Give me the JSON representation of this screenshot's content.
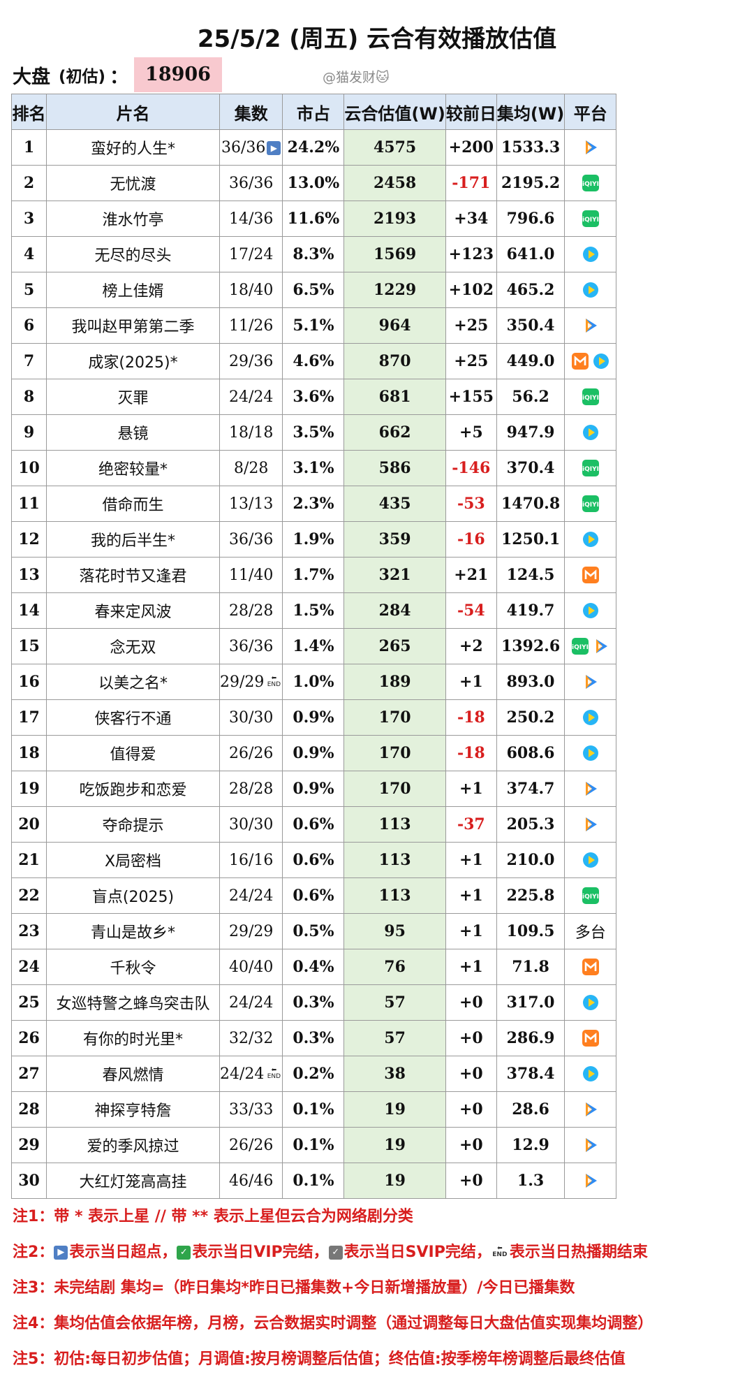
{
  "title": "25/5/2 (周五) 云合有效播放估值",
  "summary": {
    "label": "大盘",
    "sub_label": "(初估)",
    "colon": "：",
    "total": "18906"
  },
  "watermark": "@猫发财🐱",
  "columns": [
    "排名",
    "片名",
    "集数",
    "市占",
    "云合估值(W)",
    "较前日",
    "集均(W)",
    "平台"
  ],
  "colors": {
    "header_bg": "#dbe7f5",
    "estimate_bg": "#e3f1dc",
    "negative": "#d81e1e",
    "total_bg": "#f8c9cf"
  },
  "rows": [
    {
      "rank": "1",
      "name": "蛮好的人生*",
      "episodes": "36/36",
      "tag": "boost",
      "share": "24.2%",
      "estimate": "4575",
      "change": "+200",
      "avg": "1533.3",
      "platforms": [
        "tencent"
      ]
    },
    {
      "rank": "2",
      "name": "无忧渡",
      "episodes": "36/36",
      "tag": "",
      "share": "13.0%",
      "estimate": "2458",
      "change": "-171",
      "avg": "2195.2",
      "platforms": [
        "iqiyi"
      ]
    },
    {
      "rank": "3",
      "name": "淮水竹亭",
      "episodes": "14/36",
      "tag": "",
      "share": "11.6%",
      "estimate": "2193",
      "change": "+34",
      "avg": "796.6",
      "platforms": [
        "iqiyi"
      ]
    },
    {
      "rank": "4",
      "name": "无尽的尽头",
      "episodes": "17/24",
      "tag": "",
      "share": "8.3%",
      "estimate": "1569",
      "change": "+123",
      "avg": "641.0",
      "platforms": [
        "youku"
      ]
    },
    {
      "rank": "5",
      "name": "榜上佳婿",
      "episodes": "18/40",
      "tag": "",
      "share": "6.5%",
      "estimate": "1229",
      "change": "+102",
      "avg": "465.2",
      "platforms": [
        "youku"
      ]
    },
    {
      "rank": "6",
      "name": "我叫赵甲第第二季",
      "episodes": "11/26",
      "tag": "",
      "share": "5.1%",
      "estimate": "964",
      "change": "+25",
      "avg": "350.4",
      "platforms": [
        "tencent"
      ]
    },
    {
      "rank": "7",
      "name": "成家(2025)*",
      "episodes": "29/36",
      "tag": "",
      "share": "4.6%",
      "estimate": "870",
      "change": "+25",
      "avg": "449.0",
      "platforms": [
        "mango",
        "youku"
      ]
    },
    {
      "rank": "8",
      "name": "灭罪",
      "episodes": "24/24",
      "tag": "",
      "share": "3.6%",
      "estimate": "681",
      "change": "+155",
      "avg": "56.2",
      "platforms": [
        "iqiyi"
      ]
    },
    {
      "rank": "9",
      "name": "悬镜",
      "episodes": "18/18",
      "tag": "",
      "share": "3.5%",
      "estimate": "662",
      "change": "+5",
      "avg": "947.9",
      "platforms": [
        "youku"
      ]
    },
    {
      "rank": "10",
      "name": "绝密较量*",
      "episodes": "8/28",
      "tag": "",
      "share": "3.1%",
      "estimate": "586",
      "change": "-146",
      "avg": "370.4",
      "platforms": [
        "iqiyi"
      ]
    },
    {
      "rank": "11",
      "name": "借命而生",
      "episodes": "13/13",
      "tag": "",
      "share": "2.3%",
      "estimate": "435",
      "change": "-53",
      "avg": "1470.8",
      "platforms": [
        "iqiyi"
      ]
    },
    {
      "rank": "12",
      "name": "我的后半生*",
      "episodes": "36/36",
      "tag": "",
      "share": "1.9%",
      "estimate": "359",
      "change": "-16",
      "avg": "1250.1",
      "platforms": [
        "youku"
      ]
    },
    {
      "rank": "13",
      "name": "落花时节又逢君",
      "episodes": "11/40",
      "tag": "",
      "share": "1.7%",
      "estimate": "321",
      "change": "+21",
      "avg": "124.5",
      "platforms": [
        "mango"
      ]
    },
    {
      "rank": "14",
      "name": "春来定风波",
      "episodes": "28/28",
      "tag": "",
      "share": "1.5%",
      "estimate": "284",
      "change": "-54",
      "avg": "419.7",
      "platforms": [
        "youku"
      ]
    },
    {
      "rank": "15",
      "name": "念无双",
      "episodes": "36/36",
      "tag": "",
      "share": "1.4%",
      "estimate": "265",
      "change": "+2",
      "avg": "1392.6",
      "platforms": [
        "iqiyi",
        "tencent"
      ]
    },
    {
      "rank": "16",
      "name": "以美之名*",
      "episodes": "29/29",
      "tag": "end",
      "share": "1.0%",
      "estimate": "189",
      "change": "+1",
      "avg": "893.0",
      "platforms": [
        "tencent"
      ]
    },
    {
      "rank": "17",
      "name": "侠客行不通",
      "episodes": "30/30",
      "tag": "",
      "share": "0.9%",
      "estimate": "170",
      "change": "-18",
      "avg": "250.2",
      "platforms": [
        "youku"
      ]
    },
    {
      "rank": "18",
      "name": "值得爱",
      "episodes": "26/26",
      "tag": "",
      "share": "0.9%",
      "estimate": "170",
      "change": "-18",
      "avg": "608.6",
      "platforms": [
        "youku"
      ]
    },
    {
      "rank": "19",
      "name": "吃饭跑步和恋爱",
      "episodes": "28/28",
      "tag": "",
      "share": "0.9%",
      "estimate": "170",
      "change": "+1",
      "avg": "374.7",
      "platforms": [
        "tencent"
      ]
    },
    {
      "rank": "20",
      "name": "夺命提示",
      "episodes": "30/30",
      "tag": "",
      "share": "0.6%",
      "estimate": "113",
      "change": "-37",
      "avg": "205.3",
      "platforms": [
        "tencent"
      ]
    },
    {
      "rank": "21",
      "name": "X局密档",
      "episodes": "16/16",
      "tag": "",
      "share": "0.6%",
      "estimate": "113",
      "change": "+1",
      "avg": "210.0",
      "platforms": [
        "youku"
      ]
    },
    {
      "rank": "22",
      "name": "盲点(2025)",
      "episodes": "24/24",
      "tag": "",
      "share": "0.6%",
      "estimate": "113",
      "change": "+1",
      "avg": "225.8",
      "platforms": [
        "iqiyi"
      ]
    },
    {
      "rank": "23",
      "name": "青山是故乡*",
      "episodes": "29/29",
      "tag": "",
      "share": "0.5%",
      "estimate": "95",
      "change": "+1",
      "avg": "109.5",
      "platform_text": "多台",
      "platforms": []
    },
    {
      "rank": "24",
      "name": "千秋令",
      "episodes": "40/40",
      "tag": "",
      "share": "0.4%",
      "estimate": "76",
      "change": "+1",
      "avg": "71.8",
      "platforms": [
        "mango"
      ]
    },
    {
      "rank": "25",
      "name": "女巡特警之蜂鸟突击队",
      "episodes": "24/24",
      "tag": "",
      "share": "0.3%",
      "estimate": "57",
      "change": "+0",
      "avg": "317.0",
      "platforms": [
        "youku"
      ]
    },
    {
      "rank": "26",
      "name": "有你的时光里*",
      "episodes": "32/32",
      "tag": "",
      "share": "0.3%",
      "estimate": "57",
      "change": "+0",
      "avg": "286.9",
      "platforms": [
        "mango"
      ]
    },
    {
      "rank": "27",
      "name": "春风燃情",
      "episodes": "24/24",
      "tag": "end",
      "share": "0.2%",
      "estimate": "38",
      "change": "+0",
      "avg": "378.4",
      "platforms": [
        "youku"
      ]
    },
    {
      "rank": "28",
      "name": "神探亨特詹",
      "episodes": "33/33",
      "tag": "",
      "share": "0.1%",
      "estimate": "19",
      "change": "+0",
      "avg": "28.6",
      "platforms": [
        "tencent"
      ]
    },
    {
      "rank": "29",
      "name": "爱的季风掠过",
      "episodes": "26/26",
      "tag": "",
      "share": "0.1%",
      "estimate": "19",
      "change": "+0",
      "avg": "12.9",
      "platforms": [
        "tencent"
      ]
    },
    {
      "rank": "30",
      "name": "大红灯笼高高挂",
      "episodes": "46/46",
      "tag": "",
      "share": "0.1%",
      "estimate": "19",
      "change": "+0",
      "avg": "1.3",
      "platforms": [
        "tencent"
      ]
    }
  ],
  "notes": {
    "n1": "注1：带 * 表示上星 // 带 ** 表示上星但云合为网络剧分类",
    "n2_prefix": "注2：",
    "n2_a": "表示当日超点，",
    "n2_b": "表示当日VIP完结，",
    "n2_c": "表示当日SVIP完结，",
    "n2_d": "表示当日热播期结束",
    "n3": "注3：未完结剧 集均=（昨日集均*昨日已播集数+今日新增播放量）/今日已播集数",
    "n4": "注4：集均估值会依据年榜，月榜，云合数据实时调整（通过调整每日大盘估值实现集均调整）",
    "n5": "注5：初估:每日初步估值；月调值:按月榜调整后估值；终估值:按季榜年榜调整后最终估值"
  }
}
